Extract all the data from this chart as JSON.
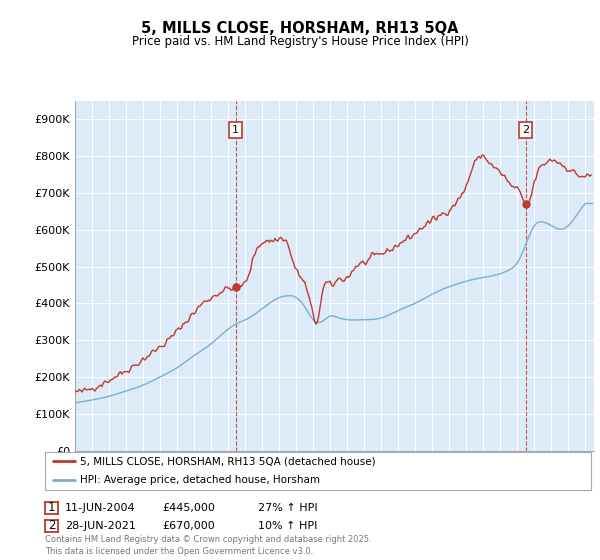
{
  "title": "5, MILLS CLOSE, HORSHAM, RH13 5QA",
  "subtitle": "Price paid vs. HM Land Registry's House Price Index (HPI)",
  "ylabel_ticks": [
    "£0",
    "£100K",
    "£200K",
    "£300K",
    "£400K",
    "£500K",
    "£600K",
    "£700K",
    "£800K",
    "£900K"
  ],
  "ylim": [
    0,
    950000
  ],
  "xlim_start": 1995.0,
  "xlim_end": 2025.5,
  "hpi_color": "#7aafd4",
  "price_color": "#c0392b",
  "bg_color": "#ddeaf7",
  "marker1_x": 2004.44,
  "marker1_label": "1",
  "marker1_date": "11-JUN-2004",
  "marker1_price": "£445,000",
  "marker1_hpi": "27% ↑ HPI",
  "marker2_x": 2021.49,
  "marker2_label": "2",
  "marker2_date": "28-JUN-2021",
  "marker2_price": "£670,000",
  "marker2_hpi": "10% ↑ HPI",
  "legend_price": "5, MILLS CLOSE, HORSHAM, RH13 5QA (detached house)",
  "legend_hpi": "HPI: Average price, detached house, Horsham",
  "footer": "Contains HM Land Registry data © Crown copyright and database right 2025.\nThis data is licensed under the Open Government Licence v3.0."
}
